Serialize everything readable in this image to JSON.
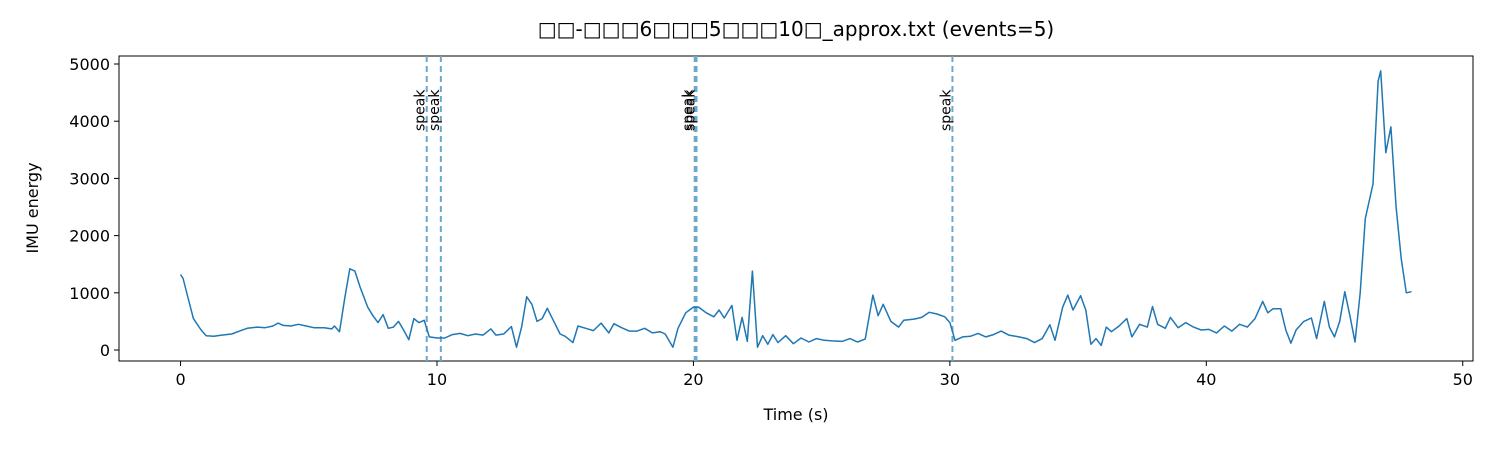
{
  "chart_data": {
    "type": "line",
    "title": "□□-□□□6□□□5□□□10□_approx.txt  (events=5)",
    "xlabel": "Time (s)",
    "ylabel": "IMU energy",
    "xlim": [
      -2.4,
      50.4
    ],
    "ylim": [
      -192,
      5140
    ],
    "xticks": [
      0,
      10,
      20,
      30,
      40,
      50
    ],
    "yticks": [
      0,
      1000,
      2000,
      3000,
      4000,
      5000
    ],
    "x": [
      0,
      0.1,
      0.3,
      0.5,
      0.8,
      1.0,
      1.3,
      1.6,
      2.0,
      2.3,
      2.6,
      3.0,
      3.3,
      3.6,
      3.8,
      4.0,
      4.3,
      4.6,
      4.9,
      5.2,
      5.6,
      5.9,
      6.0,
      6.2,
      6.4,
      6.6,
      6.8,
      7.0,
      7.3,
      7.5,
      7.7,
      7.9,
      8.1,
      8.3,
      8.5,
      8.7,
      8.9,
      9.1,
      9.3,
      9.5,
      9.7,
      10.0,
      10.3,
      10.6,
      10.9,
      11.2,
      11.5,
      11.8,
      12.1,
      12.3,
      12.6,
      12.9,
      13.1,
      13.3,
      13.5,
      13.7,
      13.9,
      14.1,
      14.3,
      14.5,
      14.8,
      15.0,
      15.3,
      15.5,
      15.8,
      16.1,
      16.4,
      16.7,
      16.9,
      17.2,
      17.5,
      17.8,
      18.1,
      18.4,
      18.7,
      18.9,
      19.2,
      19.4,
      19.7,
      20.0,
      20.2,
      20.5,
      20.8,
      21.0,
      21.2,
      21.5,
      21.7,
      21.9,
      22.1,
      22.3,
      22.5,
      22.7,
      22.9,
      23.1,
      23.3,
      23.6,
      23.9,
      24.2,
      24.5,
      24.8,
      25.1,
      25.4,
      25.8,
      26.1,
      26.4,
      26.7,
      27.0,
      27.2,
      27.4,
      27.7,
      28.0,
      28.2,
      28.6,
      28.9,
      29.2,
      29.5,
      29.8,
      30.0,
      30.2,
      30.5,
      30.8,
      31.1,
      31.4,
      31.7,
      32.0,
      32.3,
      32.7,
      33.0,
      33.3,
      33.6,
      33.9,
      34.1,
      34.4,
      34.6,
      34.8,
      35.1,
      35.3,
      35.5,
      35.7,
      35.9,
      36.1,
      36.3,
      36.6,
      36.9,
      37.1,
      37.4,
      37.7,
      37.9,
      38.1,
      38.4,
      38.6,
      38.9,
      39.2,
      39.5,
      39.8,
      40.1,
      40.4,
      40.7,
      41.0,
      41.3,
      41.6,
      41.9,
      42.2,
      42.4,
      42.6,
      42.9,
      43.1,
      43.3,
      43.5,
      43.8,
      44.1,
      44.3,
      44.6,
      44.8,
      45.0,
      45.2,
      45.4,
      45.6,
      45.8,
      46.0,
      46.2,
      46.5,
      46.7,
      46.8,
      47.0,
      47.2,
      47.4,
      47.6,
      47.8,
      48.0
    ],
    "series": [
      {
        "color": "#1f77b4",
        "values": [
          1320,
          1250,
          900,
          550,
          350,
          250,
          240,
          260,
          280,
          330,
          380,
          400,
          390,
          420,
          470,
          430,
          420,
          450,
          420,
          390,
          390,
          370,
          420,
          320,
          900,
          1420,
          1380,
          1100,
          750,
          600,
          480,
          620,
          380,
          400,
          500,
          350,
          180,
          550,
          480,
          520,
          230,
          210,
          210,
          270,
          290,
          250,
          280,
          260,
          370,
          260,
          280,
          410,
          50,
          400,
          930,
          800,
          500,
          550,
          730,
          550,
          280,
          240,
          130,
          420,
          380,
          340,
          470,
          300,
          460,
          390,
          330,
          330,
          380,
          300,
          320,
          280,
          50,
          380,
          650,
          750,
          750,
          650,
          580,
          700,
          560,
          780,
          170,
          570,
          150,
          1380,
          50,
          250,
          100,
          270,
          130,
          250,
          110,
          210,
          140,
          200,
          170,
          160,
          150,
          200,
          140,
          190,
          960,
          600,
          800,
          500,
          400,
          520,
          540,
          570,
          660,
          630,
          580,
          480,
          170,
          230,
          240,
          290,
          230,
          270,
          330,
          260,
          230,
          200,
          130,
          200,
          440,
          170,
          750,
          960,
          700,
          950,
          700,
          100,
          200,
          80,
          400,
          320,
          420,
          550,
          230,
          450,
          400,
          760,
          450,
          380,
          570,
          390,
          480,
          400,
          350,
          360,
          300,
          420,
          330,
          450,
          400,
          550,
          850,
          650,
          720,
          720,
          350,
          120,
          350,
          500,
          560,
          200,
          850,
          400,
          230,
          500,
          1020,
          600,
          140,
          1000,
          2300,
          2900,
          4700,
          4880,
          3450,
          3900,
          2500,
          1600,
          1000,
          1020
        ]
      }
    ],
    "event_color": "#6aa8cc",
    "events": [
      {
        "x": 9.6,
        "label": "speak"
      },
      {
        "x": 10.15,
        "label": "speak"
      },
      {
        "x": 20.05,
        "label": "speak"
      },
      {
        "x": 20.12,
        "label": "speak"
      },
      {
        "x": 30.1,
        "label": "speak"
      }
    ]
  }
}
